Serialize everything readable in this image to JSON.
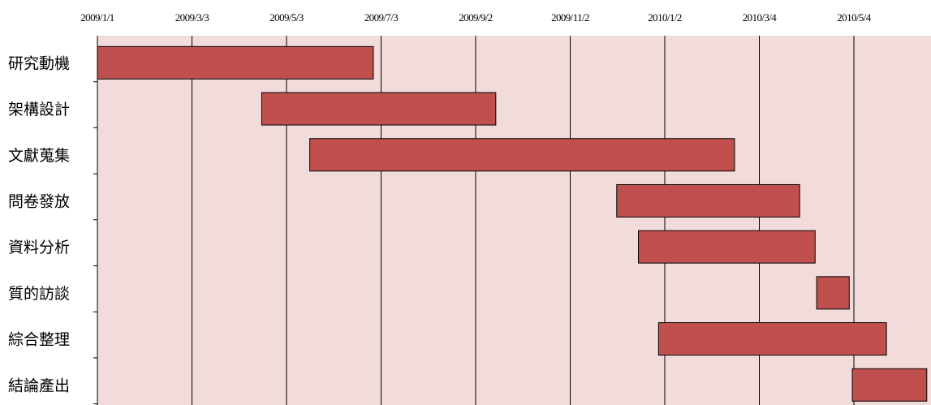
{
  "chart_data": {
    "type": "gantt",
    "title": "",
    "xlabel": "",
    "ylabel": "",
    "x_ticks": [
      "2009/1/1",
      "2009/3/3",
      "2009/5/3",
      "2009/7/3",
      "2009/9/2",
      "2009/11/2",
      "2010/1/2",
      "2010/3/4",
      "2010/5/4"
    ],
    "x_range": [
      "2009/1/1",
      "2010/6/20"
    ],
    "grid": "vertical",
    "tasks": [
      {
        "label": "研究動機",
        "start": "2009/1/1",
        "end": "2009/6/28"
      },
      {
        "label": "架構設計",
        "start": "2009/4/17",
        "end": "2009/9/15"
      },
      {
        "label": "文獻蒐集",
        "start": "2009/5/18",
        "end": "2010/2/16"
      },
      {
        "label": "問卷發放",
        "start": "2009/12/2",
        "end": "2010/3/30"
      },
      {
        "label": "資料分析",
        "start": "2009/12/16",
        "end": "2010/4/9"
      },
      {
        "label": "質的訪談",
        "start": "2010/4/10",
        "end": "2010/5/1"
      },
      {
        "label": "綜合整理",
        "start": "2009/12/29",
        "end": "2010/5/25"
      },
      {
        "label": "結論產出",
        "start": "2010/5/3",
        "end": "2010/6/20"
      }
    ],
    "colors": {
      "plot_background": "#f2dcdb",
      "bar_fill": "#c0504d",
      "bar_stroke": "#000000",
      "grid_line": "#000000"
    }
  }
}
